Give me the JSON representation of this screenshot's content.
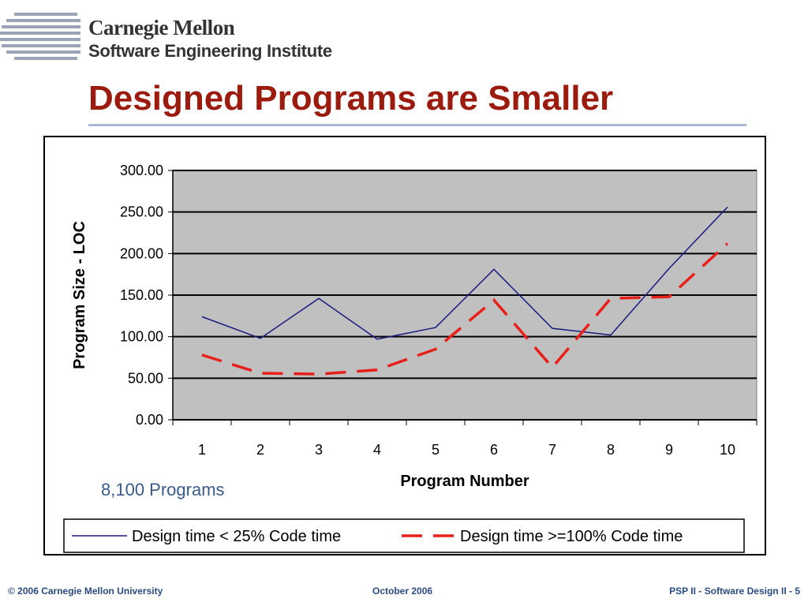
{
  "logo": {
    "line1": "Carnegie Mellon",
    "line2": "Software Engineering Institute"
  },
  "slide": {
    "title": "Designed Programs are Smaller",
    "note": "8,100 Programs"
  },
  "footer": {
    "left": "© 2006 Carnegie Mellon University",
    "middle": "October 2006",
    "right": "PSP II - Software Design II - 5"
  },
  "colors": {
    "title": "#9b1b0e",
    "series1": "#1a1a80",
    "series2": "#e8201c",
    "plot_bg": "#c0c0c0",
    "footer": "#2a4a80"
  },
  "chart_data": {
    "type": "line",
    "xlabel": "Program Number",
    "ylabel": "Program Size - LOC",
    "x": [
      1,
      2,
      3,
      4,
      5,
      6,
      7,
      8,
      9,
      10
    ],
    "y_ticks": [
      "0.00",
      "50.00",
      "100.00",
      "150.00",
      "200.00",
      "250.00",
      "300.00"
    ],
    "ylim": [
      0,
      300
    ],
    "grid": true,
    "legend": "bottom",
    "series": [
      {
        "name": "Design time < 25% Code time",
        "style": "solid",
        "values": [
          124,
          98,
          146,
          97,
          111,
          181,
          110,
          102,
          182,
          256
        ]
      },
      {
        "name": "Design time >=100% Code time",
        "style": "dashed",
        "values": [
          78,
          56,
          55,
          60,
          85,
          144,
          63,
          146,
          148,
          212
        ]
      }
    ]
  }
}
